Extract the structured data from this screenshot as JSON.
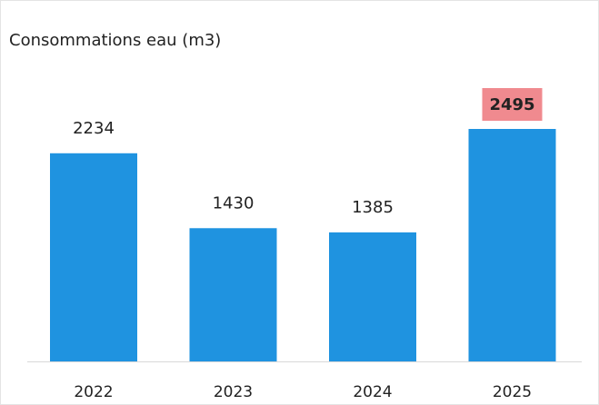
{
  "chart_data": {
    "type": "bar",
    "title": "Consommations eau (m3)",
    "categories": [
      "2022",
      "2023",
      "2024",
      "2025"
    ],
    "values": [
      2234,
      1430,
      1385,
      2495
    ],
    "color": "#1f93e0",
    "highlight_index": 3,
    "highlight_color": "#f08a8f"
  }
}
